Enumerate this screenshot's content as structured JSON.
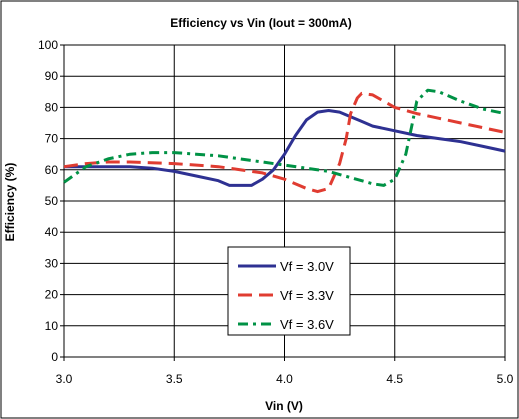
{
  "chart_data": {
    "type": "line",
    "title": "Efficiency vs Vin (Iout = 300mA)",
    "xlabel": "Vin (V)",
    "ylabel": "Efficiency (%)",
    "xlim": [
      3.0,
      5.0
    ],
    "ylim": [
      0,
      100
    ],
    "xticks": [
      "3.0",
      "3.5",
      "4.0",
      "4.5",
      "5.0"
    ],
    "yticks": [
      "0",
      "10",
      "20",
      "30",
      "40",
      "50",
      "60",
      "70",
      "80",
      "90",
      "100"
    ],
    "grid": true,
    "legend_position": "bottom-center",
    "series": [
      {
        "name": "Vf = 3.0V",
        "color": "#2e3192",
        "dash": "solid",
        "points": [
          [
            3.0,
            61
          ],
          [
            3.1,
            61
          ],
          [
            3.2,
            61
          ],
          [
            3.3,
            61
          ],
          [
            3.4,
            60.5
          ],
          [
            3.5,
            59.5
          ],
          [
            3.6,
            58
          ],
          [
            3.7,
            56.5
          ],
          [
            3.75,
            55
          ],
          [
            3.85,
            55
          ],
          [
            3.9,
            57
          ],
          [
            3.95,
            60
          ],
          [
            4.0,
            65
          ],
          [
            4.05,
            71
          ],
          [
            4.1,
            76
          ],
          [
            4.15,
            78.5
          ],
          [
            4.2,
            79
          ],
          [
            4.25,
            78.5
          ],
          [
            4.3,
            77
          ],
          [
            4.35,
            75.5
          ],
          [
            4.4,
            74
          ],
          [
            4.5,
            72.5
          ],
          [
            4.6,
            71
          ],
          [
            4.7,
            70
          ],
          [
            4.8,
            69
          ],
          [
            4.9,
            67.5
          ],
          [
            5.0,
            66
          ]
        ]
      },
      {
        "name": "Vf = 3.3V",
        "color": "#e03c31",
        "dash": "long",
        "points": [
          [
            3.0,
            61
          ],
          [
            3.1,
            62
          ],
          [
            3.2,
            62.5
          ],
          [
            3.3,
            62.5
          ],
          [
            3.5,
            62
          ],
          [
            3.7,
            61
          ],
          [
            3.9,
            59
          ],
          [
            4.0,
            57
          ],
          [
            4.1,
            54
          ],
          [
            4.15,
            53
          ],
          [
            4.2,
            54
          ],
          [
            4.25,
            62
          ],
          [
            4.28,
            70
          ],
          [
            4.3,
            78
          ],
          [
            4.33,
            83
          ],
          [
            4.35,
            84.5
          ],
          [
            4.4,
            84
          ],
          [
            4.45,
            82
          ],
          [
            4.5,
            80
          ],
          [
            4.6,
            78
          ],
          [
            4.7,
            76.5
          ],
          [
            4.8,
            75
          ],
          [
            4.9,
            73.5
          ],
          [
            5.0,
            72
          ]
        ]
      },
      {
        "name": "Vf = 3.6V",
        "color": "#009245",
        "dash": "dashdot",
        "points": [
          [
            3.0,
            56
          ],
          [
            3.05,
            58.5
          ],
          [
            3.1,
            61
          ],
          [
            3.2,
            63.5
          ],
          [
            3.3,
            65
          ],
          [
            3.4,
            65.5
          ],
          [
            3.5,
            65.5
          ],
          [
            3.6,
            65
          ],
          [
            3.7,
            64.5
          ],
          [
            3.8,
            63.5
          ],
          [
            3.9,
            62.5
          ],
          [
            4.0,
            61.5
          ],
          [
            4.1,
            60.5
          ],
          [
            4.2,
            59.5
          ],
          [
            4.3,
            57.5
          ],
          [
            4.4,
            55.5
          ],
          [
            4.45,
            55
          ],
          [
            4.5,
            57
          ],
          [
            4.55,
            65
          ],
          [
            4.58,
            75
          ],
          [
            4.6,
            82
          ],
          [
            4.65,
            85.5
          ],
          [
            4.7,
            85
          ],
          [
            4.8,
            82
          ],
          [
            4.9,
            79.5
          ],
          [
            5.0,
            78
          ]
        ]
      }
    ]
  }
}
